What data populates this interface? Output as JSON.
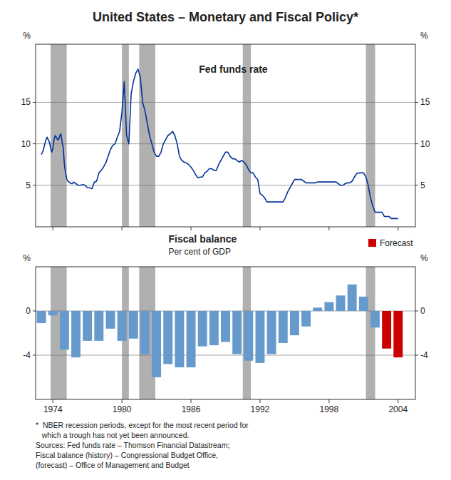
{
  "chart_data": [
    {
      "type": "line",
      "title": "United States – Monetary and Fiscal Policy*",
      "ylabel": "%",
      "x": [
        1973.0,
        1973.1,
        1973.2,
        1973.3,
        1973.4,
        1973.5,
        1973.6,
        1973.7,
        1973.8,
        1973.9,
        1974.0,
        1974.1,
        1974.2,
        1974.3,
        1974.4,
        1974.5,
        1974.6,
        1974.7,
        1974.8,
        1974.9,
        1975.0,
        1975.1,
        1975.2,
        1975.3,
        1975.4,
        1975.5,
        1975.6,
        1975.7,
        1975.8,
        1975.9,
        1976.0,
        1976.2,
        1976.4,
        1976.6,
        1976.8,
        1977.0,
        1977.2,
        1977.4,
        1977.6,
        1977.8,
        1978.0,
        1978.2,
        1978.4,
        1978.6,
        1978.8,
        1979.0,
        1979.2,
        1979.4,
        1979.6,
        1979.8,
        1980.0,
        1980.2,
        1980.4,
        1980.6,
        1980.8,
        1981.0,
        1981.2,
        1981.4,
        1981.6,
        1981.8,
        1982.0,
        1982.2,
        1982.4,
        1982.6,
        1982.8,
        1983.0,
        1983.2,
        1983.4,
        1983.6,
        1983.8,
        1984.0,
        1984.2,
        1984.4,
        1984.6,
        1984.8,
        1985.0,
        1985.2,
        1985.4,
        1985.6,
        1985.8,
        1986.0,
        1986.2,
        1986.4,
        1986.6,
        1986.8,
        1987.0,
        1987.2,
        1987.4,
        1987.6,
        1987.8,
        1988.0,
        1988.2,
        1988.4,
        1988.6,
        1988.8,
        1989.0,
        1989.2,
        1989.4,
        1989.6,
        1989.8,
        1990.0,
        1990.2,
        1990.4,
        1990.6,
        1990.8,
        1991.0,
        1991.2,
        1991.4,
        1991.6,
        1991.8,
        1992.0,
        1992.2,
        1992.4,
        1992.6,
        1992.8,
        1993.0,
        1993.2,
        1993.4,
        1993.6,
        1993.8,
        1994.0,
        1994.2,
        1994.4,
        1994.6,
        1994.8,
        1995.0,
        1995.2,
        1995.4,
        1995.6,
        1995.8,
        1996.0,
        1996.2,
        1996.4,
        1996.6,
        1996.8,
        1997.0,
        1997.2,
        1997.4,
        1997.6,
        1997.8,
        1998.0,
        1998.2,
        1998.4,
        1998.6,
        1998.8,
        1999.0,
        1999.2,
        1999.4,
        1999.6,
        1999.8,
        2000.0,
        2000.2,
        2000.4,
        2000.6,
        2000.8,
        2001.0,
        2001.2,
        2001.4,
        2001.6,
        2001.8,
        2002.0,
        2002.2,
        2002.4,
        2002.6,
        2002.8,
        2003.0,
        2003.2,
        2003.4,
        2003.6,
        2003.8,
        2004.0
      ],
      "series": [
        {
          "name": "Fed funds rate",
          "color": "#003399",
          "values": [
            8.7,
            9.0,
            9.4,
            10.0,
            10.5,
            10.8,
            10.5,
            10.2,
            9.5,
            9.0,
            9.4,
            10.5,
            11.0,
            10.8,
            10.5,
            10.5,
            11.0,
            11.2,
            10.2,
            9.5,
            7.5,
            6.5,
            5.8,
            5.5,
            5.4,
            5.3,
            5.2,
            5.2,
            5.4,
            5.3,
            5.2,
            5.0,
            5.0,
            5.1,
            5.0,
            4.7,
            4.7,
            4.6,
            5.4,
            5.5,
            6.5,
            6.8,
            7.2,
            7.7,
            8.5,
            9.3,
            9.8,
            10.0,
            10.8,
            11.5,
            13.8,
            17.5,
            11.0,
            10.0,
            16.0,
            17.5,
            18.5,
            19.0,
            18.0,
            15.0,
            14.0,
            12.5,
            11.0,
            10.0,
            9.0,
            8.5,
            8.5,
            9.0,
            10.0,
            10.5,
            11.0,
            11.2,
            11.5,
            11.0,
            10.0,
            8.5,
            8.0,
            7.8,
            7.7,
            7.5,
            7.2,
            6.8,
            6.3,
            5.9,
            6.0,
            6.0,
            6.5,
            6.7,
            7.0,
            7.0,
            6.8,
            6.8,
            7.5,
            8.0,
            8.5,
            9.0,
            9.0,
            8.5,
            8.2,
            8.2,
            8.0,
            7.8,
            8.0,
            7.8,
            7.5,
            6.9,
            6.5,
            6.5,
            6.0,
            5.7,
            4.0,
            3.8,
            3.5,
            3.0,
            3.0,
            3.0,
            3.0,
            3.0,
            3.0,
            3.0,
            3.0,
            3.5,
            4.2,
            4.7,
            5.2,
            5.7,
            5.7,
            5.7,
            5.7,
            5.5,
            5.3,
            5.3,
            5.3,
            5.3,
            5.3,
            5.4,
            5.4,
            5.4,
            5.4,
            5.4,
            5.4,
            5.4,
            5.4,
            5.4,
            5.2,
            5.0,
            5.0,
            5.2,
            5.3,
            5.3,
            5.5,
            6.0,
            6.4,
            6.5,
            6.5,
            6.5,
            6.0,
            5.0,
            3.5,
            2.5,
            1.75,
            1.75,
            1.75,
            1.75,
            1.25,
            1.25,
            1.25,
            1.0,
            1.0,
            1.0,
            1.0
          ]
        }
      ],
      "recession_bands": {
        "color": "#b0b0b0",
        "ranges": [
          [
            1973.8,
            1975.2
          ],
          [
            1980.0,
            1980.6
          ],
          [
            1981.5,
            1982.9
          ],
          [
            1990.5,
            1991.2
          ],
          [
            2001.2,
            2002.0
          ]
        ]
      },
      "xlim": [
        1972.5,
        2005.5
      ],
      "xticks": [
        1974,
        1980,
        1986,
        1992,
        1998,
        2004
      ],
      "ylim": [
        0,
        22
      ],
      "yticks": [
        5,
        10,
        15
      ],
      "grid": true,
      "tick_labels": "y"
    },
    {
      "type": "bar",
      "title": "Fiscal balance",
      "subtitle": "Per cent of GDP",
      "ylabel": "%",
      "series": [
        {
          "color": "#6699cc",
          "x": [
            1973,
            1974,
            1975,
            1976,
            1977,
            1978,
            1979,
            1980,
            1981,
            1982,
            1983,
            1984,
            1985,
            1986,
            1987,
            1988,
            1989,
            1990,
            1991,
            1992,
            1993,
            1994,
            1995,
            1996,
            1997,
            1998,
            1999,
            2000,
            2001,
            2002
          ],
          "values": [
            -1.1,
            -0.4,
            -3.5,
            -4.2,
            -2.7,
            -2.7,
            -1.6,
            -2.7,
            -2.5,
            -3.9,
            -6.0,
            -4.8,
            -5.1,
            -5.1,
            -3.2,
            -3.1,
            -2.8,
            -3.9,
            -4.5,
            -4.7,
            -3.9,
            -2.9,
            -2.2,
            -1.4,
            0.3,
            0.8,
            1.4,
            2.4,
            1.3,
            -1.5
          ]
        },
        {
          "name": "Forecast",
          "color": "#cc0000",
          "x": [
            2003,
            2004
          ],
          "values": [
            -3.4,
            -4.2
          ]
        }
      ],
      "recession_bands": {
        "color": "#b0b0b0",
        "ranges": [
          [
            1973.8,
            1975.2
          ],
          [
            1980.0,
            1980.6
          ],
          [
            1981.5,
            1982.9
          ],
          [
            1990.5,
            1991.2
          ],
          [
            2001.2,
            2002.0
          ]
        ]
      },
      "xlim": [
        1972.5,
        2005.5
      ],
      "xticks": [
        1974,
        1980,
        1986,
        1992,
        1998,
        2004
      ],
      "ylim": [
        -8,
        4
      ],
      "yticks": [
        -4,
        0
      ],
      "grid": true,
      "annotations": [
        "*  NBER recession periods, except for the most recent period for",
        "   which a trough has not yet been announced.",
        "Sources: Fed funds rate – Thomson Financial Datastream;",
        "Fiscal balance (history) – Congressional Budget Office,",
        "(forecast) – Office of Management and Budget"
      ]
    }
  ]
}
